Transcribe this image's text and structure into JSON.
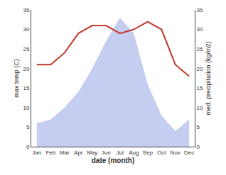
{
  "chart_data": {
    "type": "line",
    "categories": [
      "Jan",
      "Feb",
      "Mar",
      "Apr",
      "May",
      "Jun",
      "Jul",
      "Aug",
      "Sep",
      "Oct",
      "Nov",
      "Dec"
    ],
    "xlabel": "date (month)",
    "ylabel": "max temp (C)",
    "y2label": "med. precipitation (kg/m2)",
    "series": [
      {
        "type": "area",
        "color": "#c5cdf0",
        "values": [
          6,
          7,
          10,
          14,
          20,
          27,
          33,
          29,
          16,
          8,
          4,
          7
        ]
      },
      {
        "type": "line",
        "color": "#c0392b",
        "axis": "y2",
        "values": [
          21,
          21,
          24,
          29,
          31,
          31,
          29,
          30,
          32,
          30,
          21,
          18
        ]
      }
    ],
    "ylim": [
      0,
      35
    ],
    "yticks": [
      0,
      5,
      10,
      15,
      20,
      25,
      30,
      35
    ],
    "y2lim": [
      0,
      35
    ],
    "y2ticks": [
      0,
      5,
      10,
      15,
      20,
      25,
      30,
      35
    ],
    "grid": false
  }
}
